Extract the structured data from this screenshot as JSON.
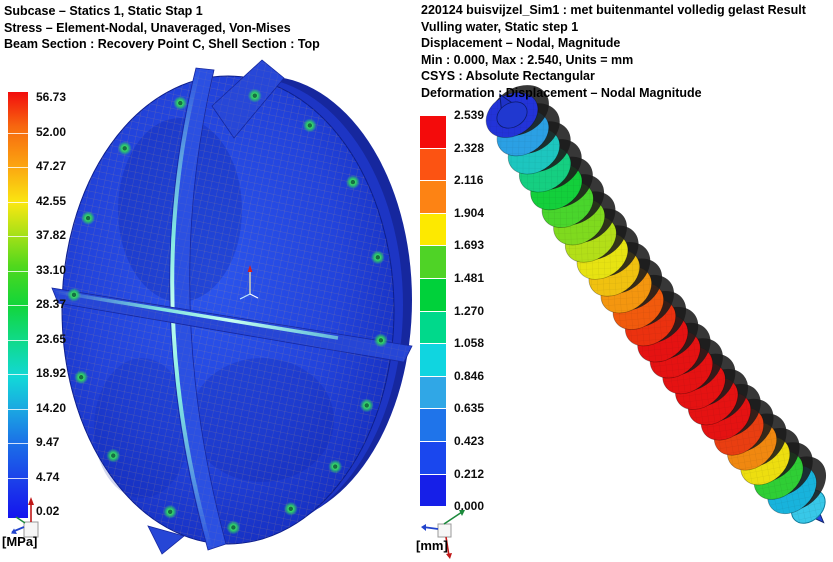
{
  "window": {
    "background": "#ffffff"
  },
  "left_view": {
    "header_lines": [
      "Subcase – Statics 1, Static Stap 1",
      "Stress – Element-Nodal, Unaveraged, Von-Mises",
      "Beam Section : Recovery Point C, Shell Section : Top"
    ],
    "legend": {
      "unit_label": "[MPa]",
      "labels": [
        "56.73",
        "52.00",
        "47.27",
        "42.55",
        "37.82",
        "33.10",
        "28.37",
        "23.65",
        "18.92",
        "14.20",
        "9.47",
        "4.74",
        "0.02"
      ]
    }
  },
  "right_view": {
    "header_lines": [
      "220124 buisvijzel_Sim1 : met buitenmantel volledig gelast Result",
      "Vulling water, Static step 1",
      "Displacement – Nodal, Magnitude",
      "Min : 0.000, Max : 2.540, Units = mm",
      "CSYS : Absolute Rectangular",
      "Deformation :  Displacement – Nodal Magnitude"
    ],
    "legend": {
      "unit_label": "[mm]",
      "labels": [
        "2.539",
        "2.328",
        "2.116",
        "1.904",
        "1.693",
        "1.481",
        "1.270",
        "1.058",
        "0.846",
        "0.635",
        "0.423",
        "0.212",
        "0.000"
      ],
      "block_colors_top_to_bottom": [
        "#f40b0b",
        "#fc5312",
        "#fd8314",
        "#fde900",
        "#4fd326",
        "#00d13a",
        "#00d98b",
        "#10d5e0",
        "#30a7e6",
        "#1f74ea",
        "#1a47ee",
        "#161fe8"
      ]
    }
  },
  "chart_data": [
    {
      "type": "heatmap",
      "title": "Stress – Element-Nodal, Unaveraged, Von-Mises",
      "subtitle": "Subcase – Statics 1, Static Stap 1",
      "unit": "MPa",
      "colorbar_min": 0.02,
      "colorbar_max": 56.73,
      "colorbar_ticks": [
        56.73,
        52.0,
        47.27,
        42.55,
        37.82,
        33.1,
        28.37,
        23.65,
        18.92,
        14.2,
        9.47,
        4.74,
        0.02
      ],
      "colorbar_style": "continuous rainbow, red high to blue low",
      "legend_position": "left",
      "depicted": "circular bulkhead plate with cross stiffener blades, surface mostly low stress (blue), green stress concentrations at rim bolt holes"
    },
    {
      "type": "heatmap",
      "title": "Displacement – Nodal, Magnitude",
      "subtitle": "Vulling water, Static step 1",
      "unit": "mm",
      "colorbar_min": 0.0,
      "colorbar_max": 2.539,
      "colorbar_ticks": [
        2.539,
        2.328,
        2.116,
        1.904,
        1.693,
        1.481,
        1.27,
        1.058,
        0.846,
        0.635,
        0.423,
        0.212,
        0.0
      ],
      "colorbar_style": "12 discrete bands, red high to blue low",
      "legend_position": "left",
      "depicted": "tube auger / screw conveyor shown diagonally, maximum displacement (red) at mid-span, ends near zero (blue)"
    }
  ]
}
